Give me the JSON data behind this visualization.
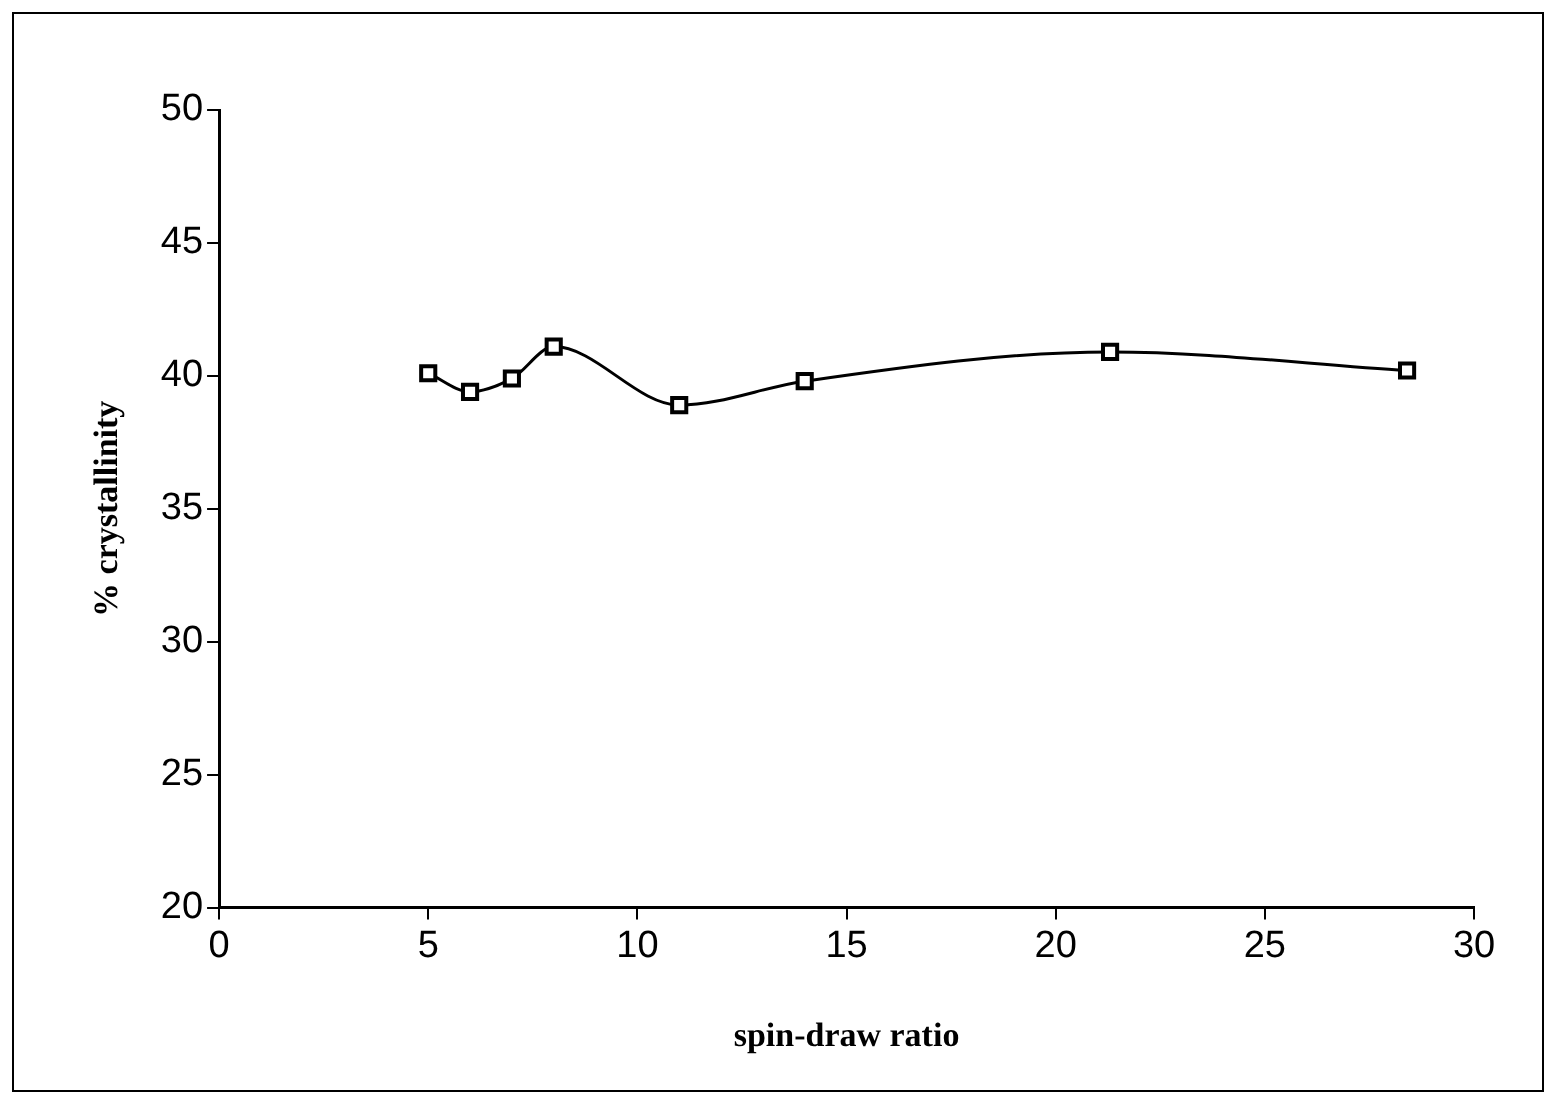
{
  "chart_data": {
    "type": "line",
    "xlabel": "spin-draw ratio",
    "ylabel": "% crystallinity",
    "x": [
      5,
      6,
      7,
      8,
      11,
      14,
      21.3,
      28.4
    ],
    "series": [
      {
        "color": "#000000",
        "values": [
          40.1,
          39.4,
          39.9,
          41.1,
          38.9,
          39.8,
          40.9,
          40.2
        ]
      }
    ],
    "xlim": [
      0,
      30
    ],
    "xticks": [
      0,
      5,
      10,
      15,
      20,
      25,
      30
    ],
    "ylim": [
      20,
      50
    ],
    "yticks": [
      20,
      25,
      30,
      35,
      40,
      45,
      50
    ],
    "grid": false,
    "legend": false,
    "marker": "square",
    "line_style": "solid"
  }
}
